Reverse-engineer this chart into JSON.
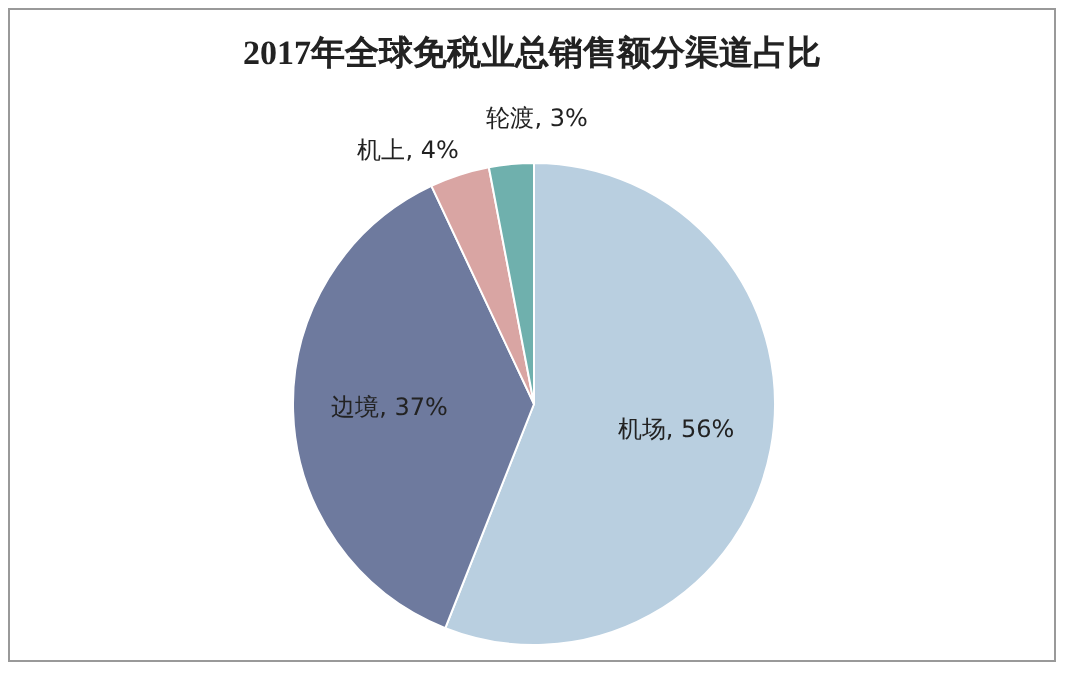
{
  "chart_data": {
    "type": "pie",
    "title": "2017年全球免税业总销售额分渠道占比",
    "categories": [
      "机场",
      "边境",
      "机上",
      "轮渡"
    ],
    "values": [
      56,
      37,
      4,
      3
    ],
    "colors": [
      "#b9cfe0",
      "#6e7a9e",
      "#d9a5a3",
      "#6fb0ad"
    ],
    "value_labels": [
      ", 56%",
      ", 37%",
      ", 4%",
      ", 3%"
    ],
    "legend": false
  }
}
